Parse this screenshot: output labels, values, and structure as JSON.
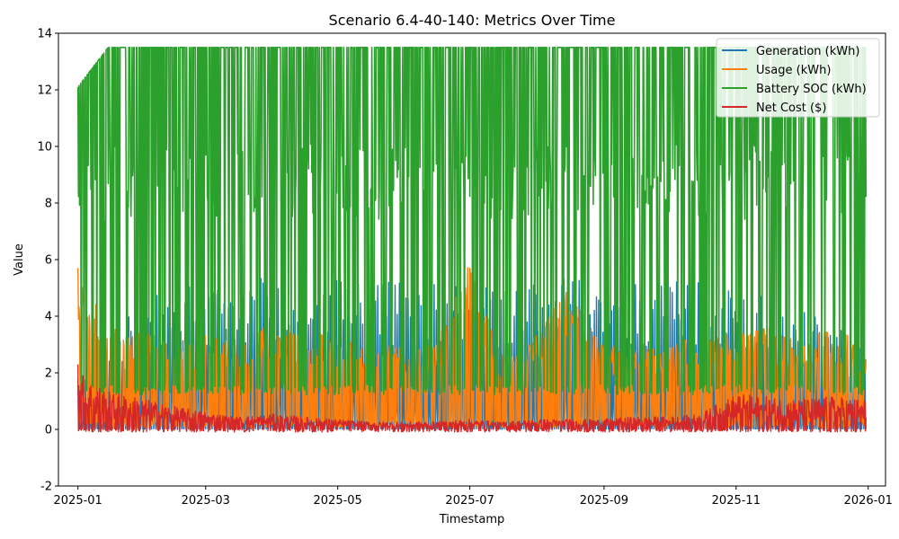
{
  "chart_data": {
    "type": "line",
    "title": "Scenario 6.4-40-140: Metrics Over Time",
    "xlabel": "Timestamp",
    "ylabel": "Value",
    "ylim": [
      -2,
      14
    ],
    "xlim": [
      "2024-12-23",
      "2026-01-09"
    ],
    "yticks": [
      -2,
      0,
      2,
      4,
      6,
      8,
      10,
      12,
      14
    ],
    "xticks": [
      {
        "date": "2025-01-01",
        "label": "2025-01"
      },
      {
        "date": "2025-03-01",
        "label": "2025-03"
      },
      {
        "date": "2025-05-01",
        "label": "2025-05"
      },
      {
        "date": "2025-07-01",
        "label": "2025-07"
      },
      {
        "date": "2025-09-01",
        "label": "2025-09"
      },
      {
        "date": "2025-11-01",
        "label": "2025-11"
      },
      {
        "date": "2026-01-01",
        "label": "2026-01"
      }
    ],
    "grid": false,
    "legend_position": "top-right",
    "x_range": [
      "2025-01-01",
      "2025-12-31"
    ],
    "series": [
      {
        "name": "Generation (kWh)",
        "color": "#1f77b4",
        "x": [
          "2025-01-01",
          "2025-01-15",
          "2025-02-01",
          "2025-02-15",
          "2025-03-01",
          "2025-03-15",
          "2025-04-01",
          "2025-04-15",
          "2025-05-01",
          "2025-05-15",
          "2025-06-01",
          "2025-06-15",
          "2025-07-01",
          "2025-07-15",
          "2025-08-01",
          "2025-08-15",
          "2025-09-01",
          "2025-09-15",
          "2025-10-01",
          "2025-10-15",
          "2025-11-01",
          "2025-11-15",
          "2025-12-01",
          "2025-12-15",
          "2025-12-31"
        ],
        "values": [
          1.8,
          3.2,
          4.6,
          5.1,
          5.3,
          5.35,
          5.35,
          5.35,
          5.35,
          5.35,
          5.35,
          5.3,
          5.3,
          5.2,
          5.3,
          5.35,
          5.35,
          5.35,
          5.3,
          5.3,
          5.0,
          4.8,
          4.2,
          3.7,
          3.0
        ]
      },
      {
        "name": "Usage (kWh)",
        "color": "#ff7f0e",
        "x": [
          "2025-01-01",
          "2025-01-15",
          "2025-02-01",
          "2025-02-15",
          "2025-03-01",
          "2025-03-15",
          "2025-04-01",
          "2025-04-15",
          "2025-05-01",
          "2025-05-15",
          "2025-06-01",
          "2025-06-15",
          "2025-07-01",
          "2025-07-15",
          "2025-08-01",
          "2025-08-15",
          "2025-09-01",
          "2025-09-15",
          "2025-10-01",
          "2025-10-15",
          "2025-11-01",
          "2025-11-15",
          "2025-12-01",
          "2025-12-15",
          "2025-12-31"
        ],
        "values": [
          5.7,
          3.6,
          3.5,
          3.0,
          3.4,
          3.2,
          3.8,
          3.6,
          3.2,
          3.1,
          2.9,
          3.0,
          5.9,
          2.8,
          3.4,
          5.0,
          2.9,
          3.1,
          2.9,
          3.5,
          3.4,
          3.7,
          3.0,
          3.7,
          3.0
        ]
      },
      {
        "name": "Battery SOC (kWh)",
        "color": "#2ca02c",
        "x": [
          "2025-01-01",
          "2025-01-15",
          "2025-02-01",
          "2025-02-15",
          "2025-03-01",
          "2025-03-15",
          "2025-04-01",
          "2025-04-15",
          "2025-05-01",
          "2025-05-15",
          "2025-06-01",
          "2025-06-15",
          "2025-07-01",
          "2025-07-15",
          "2025-08-01",
          "2025-08-15",
          "2025-09-01",
          "2025-09-15",
          "2025-10-01",
          "2025-10-15",
          "2025-11-01",
          "2025-11-15",
          "2025-12-01",
          "2025-12-15",
          "2025-12-31"
        ],
        "values": [
          12.1,
          13.5,
          13.5,
          13.5,
          13.5,
          13.5,
          13.5,
          13.5,
          13.5,
          13.5,
          13.5,
          13.5,
          13.5,
          13.5,
          13.5,
          13.5,
          13.5,
          13.5,
          13.5,
          13.5,
          13.5,
          13.5,
          13.5,
          13.5,
          13.5
        ]
      },
      {
        "name": "Net Cost ($)",
        "color": "#d62728",
        "x": [
          "2025-01-01",
          "2025-01-15",
          "2025-02-01",
          "2025-02-15",
          "2025-03-01",
          "2025-03-15",
          "2025-04-01",
          "2025-04-15",
          "2025-05-01",
          "2025-05-15",
          "2025-06-01",
          "2025-06-15",
          "2025-07-01",
          "2025-07-15",
          "2025-08-01",
          "2025-08-15",
          "2025-09-01",
          "2025-09-15",
          "2025-10-01",
          "2025-10-15",
          "2025-11-01",
          "2025-11-15",
          "2025-12-01",
          "2025-12-15",
          "2025-12-31"
        ],
        "values": [
          2.3,
          1.5,
          1.2,
          0.9,
          0.7,
          0.5,
          0.6,
          0.5,
          0.4,
          0.3,
          0.3,
          0.3,
          0.4,
          0.3,
          0.4,
          0.4,
          0.4,
          0.5,
          0.5,
          0.6,
          1.4,
          1.3,
          1.2,
          1.3,
          1.2
        ]
      }
    ]
  }
}
